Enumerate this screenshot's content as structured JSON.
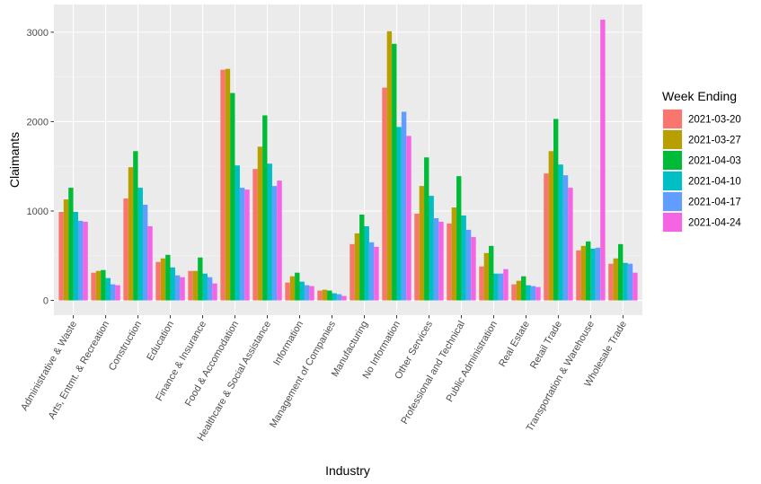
{
  "chart_data": {
    "type": "bar",
    "title": "",
    "xlabel": "Industry",
    "ylabel": "Claimants",
    "ylim": [
      0,
      3200
    ],
    "yticks": [
      0,
      1000,
      2000,
      3000
    ],
    "legend_title": "Week Ending",
    "legend_position": "right",
    "grid": true,
    "categories": [
      "Administrative & Waste",
      "Arts, Entmt. & Recreation",
      "Construction",
      "Education",
      "Finance & Insurance",
      "Food & Accomodation",
      "Healthcare & Social Assistance",
      "Information",
      "Management of Companies",
      "Manufacturing",
      "No Information",
      "Other Services",
      "Professional and Technical",
      "Public Administration",
      "Real Estate",
      "Retail Trade",
      "Transportation & Warehouse",
      "Wholesale Trade"
    ],
    "series": [
      {
        "name": "2021-03-20",
        "color": "#F8766D",
        "values": [
          990,
          310,
          1140,
          430,
          330,
          2580,
          1470,
          200,
          110,
          630,
          2380,
          970,
          860,
          380,
          180,
          1420,
          560,
          410
        ]
      },
      {
        "name": "2021-03-27",
        "color": "#B79F00",
        "values": [
          1130,
          330,
          1490,
          470,
          330,
          2590,
          1720,
          270,
          120,
          750,
          3010,
          1280,
          1040,
          530,
          220,
          1670,
          610,
          470
        ]
      },
      {
        "name": "2021-04-03",
        "color": "#00BA38",
        "values": [
          1260,
          340,
          1670,
          510,
          480,
          2320,
          2070,
          310,
          110,
          960,
          2870,
          1600,
          1390,
          610,
          270,
          2030,
          660,
          630
        ]
      },
      {
        "name": "2021-04-10",
        "color": "#00BFC4",
        "values": [
          990,
          250,
          1260,
          370,
          300,
          1510,
          1530,
          210,
          80,
          830,
          1940,
          1170,
          950,
          300,
          170,
          1520,
          580,
          420
        ]
      },
      {
        "name": "2021-04-17",
        "color": "#619CFF",
        "values": [
          890,
          180,
          1070,
          280,
          260,
          1260,
          1280,
          170,
          70,
          650,
          2110,
          920,
          790,
          300,
          160,
          1400,
          590,
          410
        ]
      },
      {
        "name": "2021-04-24",
        "color": "#F564E3",
        "values": [
          880,
          170,
          830,
          260,
          190,
          1240,
          1340,
          160,
          50,
          600,
          1840,
          880,
          710,
          350,
          150,
          1260,
          3140,
          310
        ]
      }
    ]
  }
}
